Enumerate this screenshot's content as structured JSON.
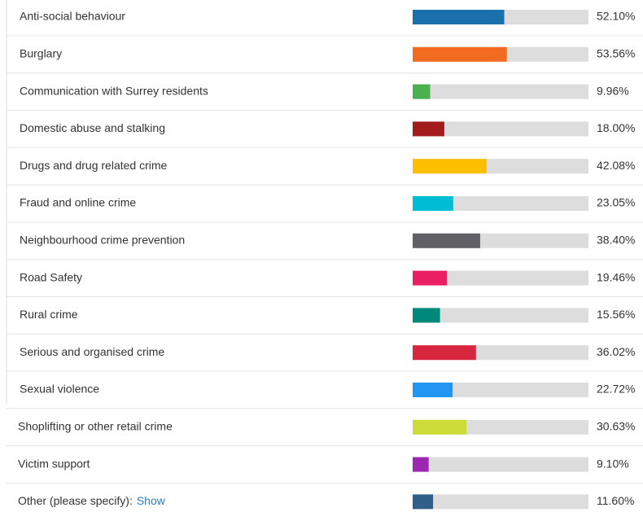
{
  "chart_data": {
    "type": "bar",
    "orientation": "horizontal",
    "categories": [
      "Anti-social behaviour",
      "Burglary",
      "Communication with Surrey residents",
      "Domestic abuse and stalking",
      "Drugs and drug related crime",
      "Fraud and online crime",
      "Neighbourhood crime prevention",
      "Road Safety",
      "Rural crime",
      "Serious and organised crime",
      "Sexual violence",
      "Shoplifting or other retail crime",
      "Victim support",
      "Other (please specify):"
    ],
    "values": [
      52.1,
      53.56,
      9.96,
      18.0,
      42.08,
      23.05,
      38.4,
      19.46,
      15.56,
      36.02,
      22.72,
      30.63,
      9.1,
      11.6
    ],
    "value_labels": [
      "52.10%",
      "53.56%",
      "9.96%",
      "18.00%",
      "42.08%",
      "23.05%",
      "38.40%",
      "19.46%",
      "15.56%",
      "36.02%",
      "22.72%",
      "30.63%",
      "9.10%",
      "11.60%"
    ],
    "colors": [
      "#1a6fad",
      "#f26b21",
      "#4caf50",
      "#a31b1b",
      "#fbbf00",
      "#00bcd4",
      "#616066",
      "#ea1e63",
      "#00897b",
      "#d7263d",
      "#2196f3",
      "#cddc39",
      "#9c27b0",
      "#2f5f8a"
    ],
    "xlim": [
      0,
      100
    ],
    "link": "Show"
  }
}
